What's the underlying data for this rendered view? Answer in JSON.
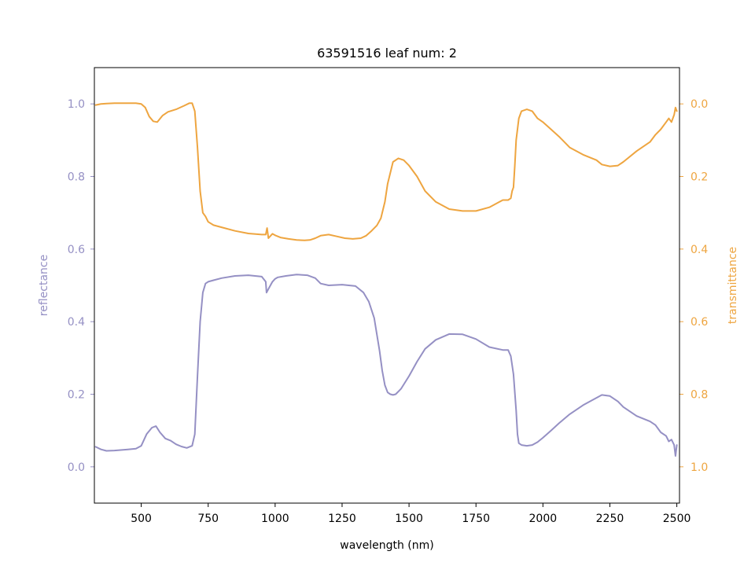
{
  "chart_data": {
    "type": "line",
    "title": "63591516 leaf num: 2",
    "xlabel": "wavelength (nm)",
    "xlim": [
      325,
      2510
    ],
    "x_ticks": [
      500,
      750,
      1000,
      1250,
      1500,
      1750,
      2000,
      2250,
      2500
    ],
    "grid": false,
    "left_axis": {
      "label": "reflectance",
      "color": "#9590c4",
      "ylim": [
        -0.1,
        1.1
      ],
      "ticks": [
        0.0,
        0.2,
        0.4,
        0.6,
        0.8,
        1.0
      ]
    },
    "right_axis": {
      "label": "transmittance",
      "color": "#eea540",
      "ylim": [
        -0.1,
        1.1
      ],
      "inverted": true,
      "ticks": [
        0.0,
        0.2,
        0.4,
        0.6,
        0.8,
        1.0
      ]
    },
    "series": [
      {
        "axis": "left",
        "color": "#9590c4",
        "x": [
          330,
          350,
          370,
          400,
          450,
          480,
          500,
          520,
          540,
          555,
          570,
          590,
          610,
          630,
          650,
          670,
          690,
          700,
          710,
          720,
          730,
          740,
          750,
          770,
          800,
          850,
          900,
          950,
          965,
          968,
          975,
          990,
          1000,
          1010,
          1040,
          1080,
          1120,
          1150,
          1170,
          1200,
          1250,
          1300,
          1330,
          1350,
          1370,
          1390,
          1400,
          1410,
          1420,
          1430,
          1440,
          1450,
          1470,
          1500,
          1530,
          1560,
          1600,
          1650,
          1700,
          1750,
          1800,
          1850,
          1870,
          1880,
          1890,
          1900,
          1905,
          1910,
          1920,
          1940,
          1960,
          1980,
          2000,
          2030,
          2060,
          2100,
          2150,
          2200,
          2220,
          2250,
          2280,
          2300,
          2350,
          2400,
          2420,
          2440,
          2460,
          2470,
          2480,
          2490,
          2495,
          2500
        ],
        "y": [
          0.055,
          0.048,
          0.044,
          0.045,
          0.048,
          0.05,
          0.058,
          0.09,
          0.108,
          0.112,
          0.095,
          0.078,
          0.072,
          0.062,
          0.056,
          0.052,
          0.058,
          0.09,
          0.25,
          0.4,
          0.48,
          0.505,
          0.51,
          0.514,
          0.52,
          0.526,
          0.528,
          0.524,
          0.51,
          0.48,
          0.49,
          0.51,
          0.518,
          0.522,
          0.526,
          0.53,
          0.528,
          0.52,
          0.505,
          0.5,
          0.502,
          0.498,
          0.48,
          0.455,
          0.41,
          0.32,
          0.265,
          0.225,
          0.205,
          0.2,
          0.198,
          0.2,
          0.215,
          0.25,
          0.29,
          0.325,
          0.35,
          0.366,
          0.365,
          0.352,
          0.33,
          0.322,
          0.322,
          0.305,
          0.255,
          0.155,
          0.09,
          0.065,
          0.06,
          0.058,
          0.06,
          0.068,
          0.08,
          0.1,
          0.12,
          0.145,
          0.17,
          0.19,
          0.198,
          0.195,
          0.18,
          0.165,
          0.14,
          0.125,
          0.115,
          0.095,
          0.085,
          0.07,
          0.075,
          0.06,
          0.03,
          0.06
        ]
      },
      {
        "axis": "right",
        "color": "#eea540",
        "x": [
          330,
          350,
          370,
          400,
          450,
          480,
          500,
          515,
          530,
          545,
          560,
          580,
          600,
          630,
          660,
          680,
          690,
          700,
          710,
          720,
          730,
          740,
          750,
          770,
          800,
          850,
          900,
          950,
          965,
          970,
          975,
          990,
          1000,
          1020,
          1050,
          1080,
          1110,
          1130,
          1150,
          1170,
          1200,
          1230,
          1260,
          1290,
          1320,
          1340,
          1360,
          1380,
          1395,
          1410,
          1420,
          1440,
          1460,
          1480,
          1500,
          1530,
          1560,
          1600,
          1650,
          1700,
          1750,
          1800,
          1850,
          1870,
          1880,
          1885,
          1890,
          1895,
          1900,
          1905,
          1910,
          1920,
          1940,
          1960,
          1980,
          2000,
          2030,
          2060,
          2100,
          2150,
          2200,
          2220,
          2250,
          2280,
          2300,
          2350,
          2400,
          2420,
          2440,
          2460,
          2470,
          2480,
          2490,
          2495,
          2500
        ],
        "y": [
          0.003,
          0.0,
          -0.001,
          -0.002,
          -0.002,
          -0.002,
          0.0,
          0.01,
          0.035,
          0.048,
          0.05,
          0.032,
          0.022,
          0.015,
          0.005,
          -0.002,
          -0.002,
          0.02,
          0.12,
          0.24,
          0.3,
          0.31,
          0.325,
          0.334,
          0.34,
          0.35,
          0.357,
          0.36,
          0.36,
          0.342,
          0.37,
          0.358,
          0.362,
          0.368,
          0.372,
          0.375,
          0.376,
          0.375,
          0.37,
          0.363,
          0.36,
          0.365,
          0.37,
          0.372,
          0.37,
          0.363,
          0.35,
          0.335,
          0.315,
          0.27,
          0.22,
          0.16,
          0.15,
          0.155,
          0.17,
          0.2,
          0.24,
          0.27,
          0.29,
          0.295,
          0.295,
          0.285,
          0.265,
          0.265,
          0.26,
          0.24,
          0.23,
          0.17,
          0.1,
          0.07,
          0.04,
          0.02,
          0.015,
          0.02,
          0.04,
          0.05,
          0.07,
          0.09,
          0.12,
          0.14,
          0.155,
          0.167,
          0.172,
          0.17,
          0.16,
          0.13,
          0.105,
          0.085,
          0.07,
          0.05,
          0.04,
          0.05,
          0.03,
          0.01,
          0.02
        ]
      }
    ]
  }
}
